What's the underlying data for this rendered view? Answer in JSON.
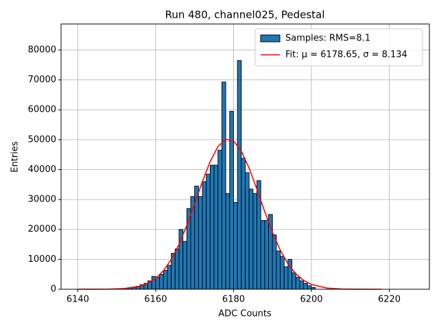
{
  "chart_data": {
    "type": "histogram",
    "title": "Run 480, channel025, Pedestal",
    "x_label": "ADC Counts",
    "y_label": "Entries",
    "xlim": [
      6135.7,
      6230.3
    ],
    "ylim": [
      0,
      88700
    ],
    "xticks": [
      6140,
      6160,
      6180,
      6200,
      6220
    ],
    "yticks": [
      0,
      10000,
      20000,
      30000,
      40000,
      50000,
      60000,
      70000,
      80000
    ],
    "grid": true,
    "legend": "upper right",
    "series": [
      {
        "type": "histogram",
        "name": "Samples: RMS=8.1",
        "color": "#1f77b4",
        "bins": [
          6150,
          6151,
          6152,
          6153,
          6154,
          6155,
          6156,
          6157,
          6158,
          6159,
          6160,
          6161,
          6162,
          6163,
          6164,
          6165,
          6166,
          6167,
          6168,
          6169,
          6170,
          6171,
          6172,
          6173,
          6174,
          6175,
          6176,
          6177,
          6178,
          6179,
          6180,
          6181,
          6182,
          6183,
          6184,
          6185,
          6186,
          6187,
          6188,
          6189,
          6190,
          6191,
          6192,
          6193,
          6194,
          6195,
          6196,
          6197,
          6198,
          6199,
          6200,
          6201
        ],
        "values": [
          100,
          200,
          300,
          500,
          700,
          1000,
          1500,
          2000,
          2800,
          4300,
          4000,
          5000,
          6300,
          8000,
          12000,
          13500,
          20000,
          16000,
          27000,
          31000,
          34500,
          31000,
          36000,
          38500,
          41500,
          41500,
          46500,
          69300,
          32000,
          59500,
          29000,
          76500,
          43800,
          39000,
          33500,
          32000,
          36300,
          23000,
          23000,
          25000,
          18200,
          12800,
          11000,
          7500,
          10000,
          5500,
          4000,
          2800,
          2000,
          1200,
          600
        ]
      },
      {
        "type": "line",
        "name": "Fit: μ = 6178.65, σ = 8.134",
        "color": "#ff0000",
        "x": [
          6140,
          6144,
          6148,
          6152,
          6156,
          6158,
          6160,
          6162,
          6164,
          6166,
          6168,
          6170,
          6172,
          6174,
          6176,
          6178,
          6180,
          6182,
          6184,
          6186,
          6188,
          6190,
          6192,
          6194,
          6196,
          6198,
          6200,
          6204,
          6208,
          6212,
          6218
        ],
        "values": [
          1,
          6,
          41,
          235,
          1041,
          2003,
          3630,
          6190,
          9935,
          15015,
          21350,
          28570,
          36015,
          42710,
          47700,
          50140,
          49610,
          46210,
          40520,
          33440,
          25980,
          19000,
          13080,
          8475,
          5170,
          2968,
          1605,
          391,
          75,
          11,
          0
        ]
      }
    ]
  }
}
